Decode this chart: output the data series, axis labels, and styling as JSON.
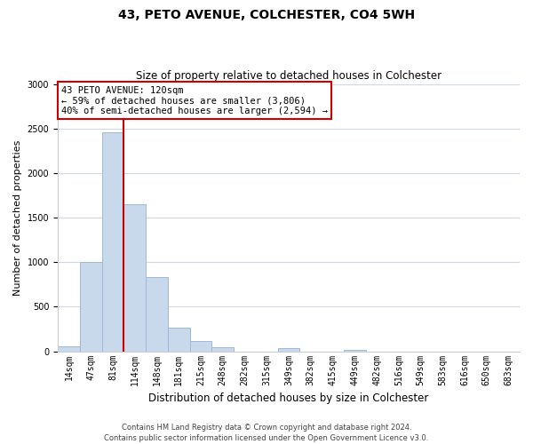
{
  "title": "43, PETO AVENUE, COLCHESTER, CO4 5WH",
  "subtitle": "Size of property relative to detached houses in Colchester",
  "xlabel": "Distribution of detached houses by size in Colchester",
  "ylabel": "Number of detached properties",
  "bar_labels": [
    "14sqm",
    "47sqm",
    "81sqm",
    "114sqm",
    "148sqm",
    "181sqm",
    "215sqm",
    "248sqm",
    "282sqm",
    "315sqm",
    "349sqm",
    "382sqm",
    "415sqm",
    "449sqm",
    "482sqm",
    "516sqm",
    "549sqm",
    "583sqm",
    "616sqm",
    "650sqm",
    "683sqm"
  ],
  "bar_values": [
    55,
    1000,
    2460,
    1650,
    830,
    270,
    120,
    50,
    0,
    0,
    35,
    0,
    0,
    20,
    0,
    0,
    0,
    0,
    0,
    0,
    0
  ],
  "bar_color": "#c9d9ec",
  "bar_edge_color": "#a0b8d8",
  "property_line_color": "#cc0000",
  "annotation_line1": "43 PETO AVENUE: 120sqm",
  "annotation_line2": "← 59% of detached houses are smaller (3,806)",
  "annotation_line3": "40% of semi-detached houses are larger (2,594) →",
  "annotation_box_color": "#ffffff",
  "annotation_box_edge_color": "#cc0000",
  "ylim": [
    0,
    3000
  ],
  "yticks": [
    0,
    500,
    1000,
    1500,
    2000,
    2500,
    3000
  ],
  "footer_line1": "Contains HM Land Registry data © Crown copyright and database right 2024.",
  "footer_line2": "Contains public sector information licensed under the Open Government Licence v3.0.",
  "background_color": "#ffffff",
  "grid_color": "#d0d8e8",
  "title_fontsize": 10,
  "subtitle_fontsize": 8.5,
  "ylabel_fontsize": 8,
  "xlabel_fontsize": 8.5,
  "tick_fontsize": 7,
  "annot_fontsize": 7.5,
  "footer_fontsize": 6
}
